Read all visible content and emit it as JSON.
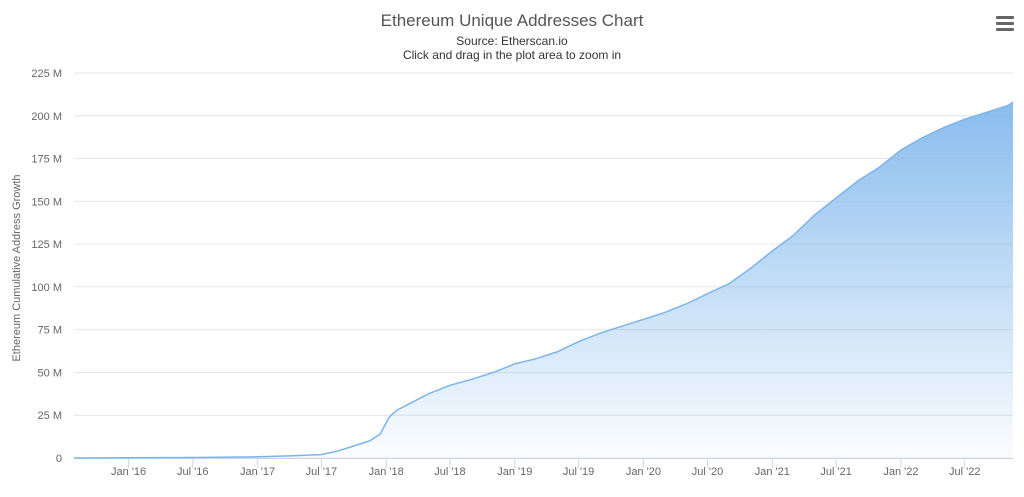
{
  "chart_data": {
    "type": "area",
    "title": "Ethereum Unique Addresses Chart",
    "subtitle": "Source: Etherscan.io",
    "subtitle2": "Click and drag in the plot area to zoom in",
    "ylabel": "Ethereum Cumulative Address Growth",
    "xlabel": "",
    "ylim": [
      0,
      225
    ],
    "yticks": [
      0,
      25,
      50,
      75,
      100,
      125,
      150,
      175,
      200,
      225
    ],
    "ytick_labels": [
      "0",
      "25 M",
      "50 M",
      "75 M",
      "100 M",
      "125 M",
      "150 M",
      "175 M",
      "200 M",
      "225 M"
    ],
    "xlim": [
      "2015-07-30",
      "2022-11-15"
    ],
    "xticks": [
      "2016-01-01",
      "2016-07-01",
      "2017-01-01",
      "2017-07-01",
      "2018-01-01",
      "2018-07-01",
      "2019-01-01",
      "2019-07-01",
      "2020-01-01",
      "2020-07-01",
      "2021-01-01",
      "2021-07-01",
      "2022-01-01",
      "2022-07-01"
    ],
    "xtick_labels": [
      "Jan '16",
      "Jul '16",
      "Jan '17",
      "Jul '17",
      "Jan '18",
      "Jul '18",
      "Jan '19",
      "Jul '19",
      "Jan '20",
      "Jul '20",
      "Jan '21",
      "Jul '21",
      "Jan '22",
      "Jul '22"
    ],
    "grid": true,
    "legend": false,
    "series_color": "#7cb5ec",
    "x": [
      "2015-07-30",
      "2016-01-01",
      "2016-07-01",
      "2017-01-01",
      "2017-04-01",
      "2017-07-01",
      "2017-08-15",
      "2017-10-01",
      "2017-11-15",
      "2017-12-15",
      "2018-01-10",
      "2018-02-01",
      "2018-03-15",
      "2018-05-01",
      "2018-07-01",
      "2018-09-01",
      "2018-11-01",
      "2019-01-01",
      "2019-03-01",
      "2019-05-01",
      "2019-07-01",
      "2019-09-01",
      "2019-11-01",
      "2020-01-01",
      "2020-03-01",
      "2020-05-01",
      "2020-07-01",
      "2020-09-01",
      "2020-11-01",
      "2021-01-01",
      "2021-03-01",
      "2021-05-01",
      "2021-07-01",
      "2021-09-01",
      "2021-11-01",
      "2022-01-01",
      "2022-03-01",
      "2022-05-01",
      "2022-07-01",
      "2022-09-01",
      "2022-11-01",
      "2022-11-15"
    ],
    "values": [
      0,
      0.1,
      0.3,
      0.7,
      1.2,
      2,
      4,
      7,
      10,
      14,
      24,
      28,
      32.5,
      37.5,
      42.5,
      46,
      50,
      55,
      58,
      62,
      68,
      73,
      77,
      81,
      85,
      90,
      96,
      102,
      111,
      121,
      130,
      142,
      152,
      162,
      170,
      180,
      187,
      193,
      198,
      202,
      206,
      208
    ]
  },
  "ui": {
    "menu_icon": "hamburger-menu-icon"
  }
}
